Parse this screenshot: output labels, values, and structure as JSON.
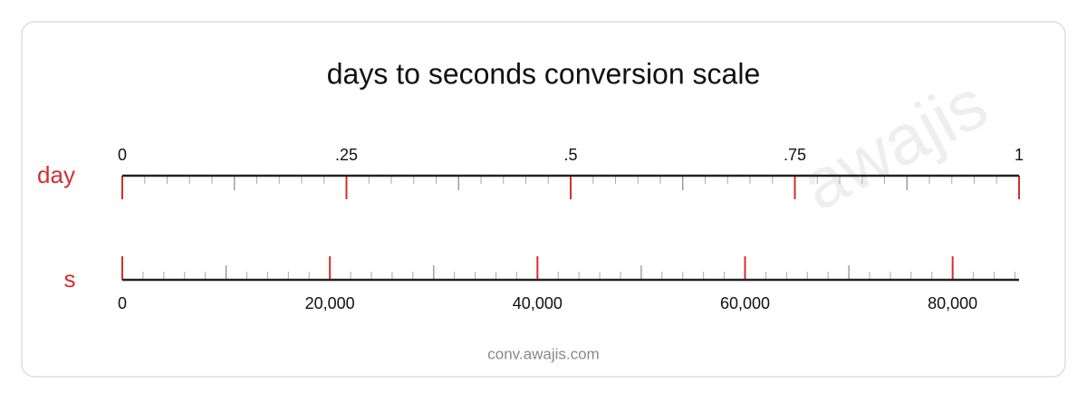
{
  "title": "days to seconds conversion scale",
  "watermark": "awajis",
  "footer": "conv.awajis.com",
  "scales": [
    {
      "unit": "day",
      "lim": [
        0,
        1
      ],
      "side": "top",
      "ticks": [
        0,
        {
          "value": 0.25,
          "label": ".25"
        },
        {
          "value": 0.5,
          "label": ".5"
        },
        {
          "value": 0.75,
          "label": ".75"
        },
        1
      ],
      "mid_ticks": [
        0.125,
        0.375,
        0.625,
        0.875
      ],
      "minor_ticks": [
        0.025,
        0.05,
        0.075,
        0.1,
        0.15,
        0.175,
        0.2,
        0.225,
        0.275,
        0.3,
        0.325,
        0.35,
        0.4,
        0.425,
        0.45,
        0.475,
        0.525,
        0.55,
        0.575,
        0.6,
        0.65,
        0.675,
        0.7,
        0.725,
        0.775,
        0.8,
        0.825,
        0.85,
        0.9,
        0.925,
        0.95,
        0.975
      ]
    },
    {
      "unit": "s",
      "lim": [
        0,
        86400
      ],
      "side": "bottom",
      "ticks": [
        0,
        {
          "value": 20000,
          "label": "20,000"
        },
        {
          "value": 40000,
          "label": "40,000"
        },
        {
          "value": 60000,
          "label": "60,000"
        },
        {
          "value": 80000,
          "label": "80,000"
        }
      ],
      "mid_ticks": [
        10000,
        30000,
        50000,
        70000
      ],
      "minor_ticks": [
        2000,
        4000,
        6000,
        8000,
        12000,
        14000,
        16000,
        18000,
        22000,
        24000,
        26000,
        28000,
        32000,
        34000,
        36000,
        38000,
        42000,
        44000,
        46000,
        48000,
        52000,
        54000,
        56000,
        58000,
        62000,
        64000,
        66000,
        68000,
        72000,
        74000,
        76000,
        78000,
        82000,
        84000,
        86000
      ]
    }
  ]
}
